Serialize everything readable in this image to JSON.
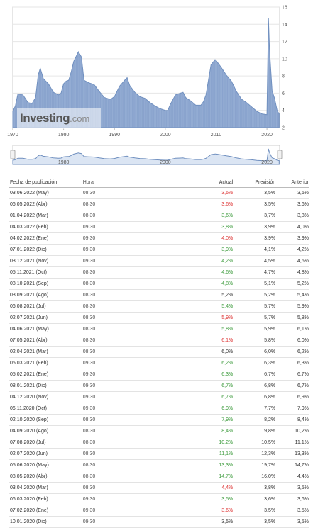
{
  "brand": {
    "name": "Investing",
    "suffix": ".com"
  },
  "chart": {
    "y_ticks": [
      "16",
      "14",
      "12",
      "10",
      "8",
      "6",
      "4",
      "2"
    ],
    "x_ticks": [
      "1970",
      "1980",
      "1990",
      "2000",
      "2010",
      "2020"
    ],
    "nav_x_ticks": [
      "1980",
      "2000",
      "2020"
    ],
    "line_color": "#6f8fbf",
    "fill_color": "#93acd3"
  },
  "chart_data": {
    "type": "area",
    "title": "",
    "xlabel": "",
    "ylabel": "",
    "xlim": [
      1970,
      2022.5
    ],
    "ylim": [
      2,
      16
    ],
    "y_ticks": [
      2,
      4,
      6,
      8,
      10,
      12,
      14,
      16
    ],
    "x_ticks": [
      1970,
      1980,
      1990,
      2000,
      2010,
      2020
    ],
    "grid": true,
    "series": [
      {
        "x": [
          1970,
          1970.5,
          1971,
          1972,
          1973,
          1973.8,
          1974.5,
          1975,
          1975.4,
          1976,
          1977,
          1978,
          1979,
          1979.5,
          1980,
          1980.5,
          1981,
          1981.5,
          1982,
          1982.9,
          1983.5,
          1984,
          1985,
          1986,
          1987,
          1988,
          1989,
          1989.3,
          1990,
          1991,
          1992,
          1992.5,
          1993,
          1994,
          1995,
          1996,
          1997,
          1998,
          1999,
          2000,
          2000.5,
          2001,
          2002,
          2003,
          2003.5,
          2004,
          2005,
          2006,
          2007,
          2007.5,
          2008,
          2009,
          2009.8,
          2010,
          2011,
          2012,
          2013,
          2014,
          2015,
          2016,
          2017,
          2018,
          2019,
          2020,
          2020.3,
          2020.5,
          2021,
          2021.5,
          2022,
          2022.4
        ],
        "y": [
          3.9,
          4.5,
          5.9,
          5.8,
          4.9,
          4.8,
          5.5,
          8.1,
          8.9,
          7.7,
          7.1,
          6.1,
          5.8,
          6.0,
          7.1,
          7.4,
          7.5,
          8.5,
          9.7,
          10.8,
          10.2,
          7.5,
          7.2,
          7.0,
          6.2,
          5.5,
          5.3,
          5.3,
          5.6,
          6.8,
          7.5,
          7.8,
          6.9,
          6.1,
          5.6,
          5.4,
          4.9,
          4.5,
          4.2,
          4.0,
          4.0,
          4.7,
          5.8,
          6.0,
          6.1,
          5.5,
          5.1,
          4.6,
          4.6,
          5.0,
          5.8,
          9.3,
          9.9,
          9.8,
          9.0,
          8.1,
          7.4,
          6.2,
          5.3,
          4.9,
          4.4,
          3.9,
          3.6,
          3.5,
          14.7,
          11.1,
          6.3,
          5.4,
          4.0,
          3.6
        ]
      }
    ],
    "navigator": {
      "x_ticks": [
        1980,
        2000,
        2020
      ]
    }
  },
  "table": {
    "headers": {
      "date": "Fecha de publicación",
      "time": "Hora",
      "actual": "Actual",
      "forecast": "Previsión",
      "previous": "Anterior"
    },
    "rows": [
      {
        "date": "03.06.2022 (May)",
        "time": "08:30",
        "actual": "3,6%",
        "forecast": "3,5%",
        "previous": "3,6%",
        "trend": "down"
      },
      {
        "date": "06.05.2022 (Abr)",
        "time": "08:30",
        "actual": "3,6%",
        "forecast": "3,5%",
        "previous": "3,6%",
        "trend": "down"
      },
      {
        "date": "01.04.2022 (Mar)",
        "time": "08:30",
        "actual": "3,6%",
        "forecast": "3,7%",
        "previous": "3,8%",
        "trend": "up"
      },
      {
        "date": "04.03.2022 (Feb)",
        "time": "09:30",
        "actual": "3,8%",
        "forecast": "3,9%",
        "previous": "4,0%",
        "trend": "up"
      },
      {
        "date": "04.02.2022 (Ene)",
        "time": "09:30",
        "actual": "4,0%",
        "forecast": "3,9%",
        "previous": "3,9%",
        "trend": "down"
      },
      {
        "date": "07.01.2022 (Dic)",
        "time": "09:30",
        "actual": "3,9%",
        "forecast": "4,1%",
        "previous": "4,2%",
        "trend": "up"
      },
      {
        "date": "03.12.2021 (Nov)",
        "time": "09:30",
        "actual": "4,2%",
        "forecast": "4,5%",
        "previous": "4,6%",
        "trend": "up"
      },
      {
        "date": "05.11.2021 (Oct)",
        "time": "08:30",
        "actual": "4,6%",
        "forecast": "4,7%",
        "previous": "4,8%",
        "trend": "up"
      },
      {
        "date": "08.10.2021 (Sep)",
        "time": "08:30",
        "actual": "4,8%",
        "forecast": "5,1%",
        "previous": "5,2%",
        "trend": "up"
      },
      {
        "date": "03.09.2021 (Ago)",
        "time": "08:30",
        "actual": "5,2%",
        "forecast": "5,2%",
        "previous": "5,4%",
        "trend": "neutral"
      },
      {
        "date": "06.08.2021 (Jul)",
        "time": "08:30",
        "actual": "5,4%",
        "forecast": "5,7%",
        "previous": "5,9%",
        "trend": "up"
      },
      {
        "date": "02.07.2021 (Jun)",
        "time": "08:30",
        "actual": "5,9%",
        "forecast": "5,7%",
        "previous": "5,8%",
        "trend": "down"
      },
      {
        "date": "04.06.2021 (May)",
        "time": "08:30",
        "actual": "5,8%",
        "forecast": "5,9%",
        "previous": "6,1%",
        "trend": "up"
      },
      {
        "date": "07.05.2021 (Abr)",
        "time": "08:30",
        "actual": "6,1%",
        "forecast": "5,8%",
        "previous": "6,0%",
        "trend": "down"
      },
      {
        "date": "02.04.2021 (Mar)",
        "time": "08:30",
        "actual": "6,0%",
        "forecast": "6,0%",
        "previous": "6,2%",
        "trend": "neutral"
      },
      {
        "date": "05.03.2021 (Feb)",
        "time": "09:30",
        "actual": "6,2%",
        "forecast": "6,3%",
        "previous": "6,3%",
        "trend": "up"
      },
      {
        "date": "05.02.2021 (Ene)",
        "time": "09:30",
        "actual": "6,3%",
        "forecast": "6,7%",
        "previous": "6,7%",
        "trend": "up"
      },
      {
        "date": "08.01.2021 (Dic)",
        "time": "09:30",
        "actual": "6,7%",
        "forecast": "6,8%",
        "previous": "6,7%",
        "trend": "up"
      },
      {
        "date": "04.12.2020 (Nov)",
        "time": "09:30",
        "actual": "6,7%",
        "forecast": "6,8%",
        "previous": "6,9%",
        "trend": "up"
      },
      {
        "date": "06.11.2020 (Oct)",
        "time": "09:30",
        "actual": "6,9%",
        "forecast": "7,7%",
        "previous": "7,9%",
        "trend": "up"
      },
      {
        "date": "02.10.2020 (Sep)",
        "time": "08:30",
        "actual": "7,9%",
        "forecast": "8,2%",
        "previous": "8,4%",
        "trend": "up"
      },
      {
        "date": "04.09.2020 (Ago)",
        "time": "08:30",
        "actual": "8,4%",
        "forecast": "9,8%",
        "previous": "10,2%",
        "trend": "up"
      },
      {
        "date": "07.08.2020 (Jul)",
        "time": "08:30",
        "actual": "10,2%",
        "forecast": "10,5%",
        "previous": "11,1%",
        "trend": "up"
      },
      {
        "date": "02.07.2020 (Jun)",
        "time": "08:30",
        "actual": "11,1%",
        "forecast": "12,3%",
        "previous": "13,3%",
        "trend": "up"
      },
      {
        "date": "05.06.2020 (May)",
        "time": "08:30",
        "actual": "13,3%",
        "forecast": "19,7%",
        "previous": "14,7%",
        "trend": "up"
      },
      {
        "date": "08.05.2020 (Abr)",
        "time": "08:30",
        "actual": "14,7%",
        "forecast": "16,0%",
        "previous": "4,4%",
        "trend": "up"
      },
      {
        "date": "03.04.2020 (Mar)",
        "time": "08:30",
        "actual": "4,4%",
        "forecast": "3,8%",
        "previous": "3,5%",
        "trend": "down"
      },
      {
        "date": "06.03.2020 (Feb)",
        "time": "09:30",
        "actual": "3,5%",
        "forecast": "3,6%",
        "previous": "3,6%",
        "trend": "up"
      },
      {
        "date": "07.02.2020 (Ene)",
        "time": "09:30",
        "actual": "3,6%",
        "forecast": "3,5%",
        "previous": "3,5%",
        "trend": "down"
      },
      {
        "date": "10.01.2020 (Dic)",
        "time": "09:30",
        "actual": "3,5%",
        "forecast": "3,5%",
        "previous": "3,5%",
        "trend": "neutral"
      }
    ]
  }
}
